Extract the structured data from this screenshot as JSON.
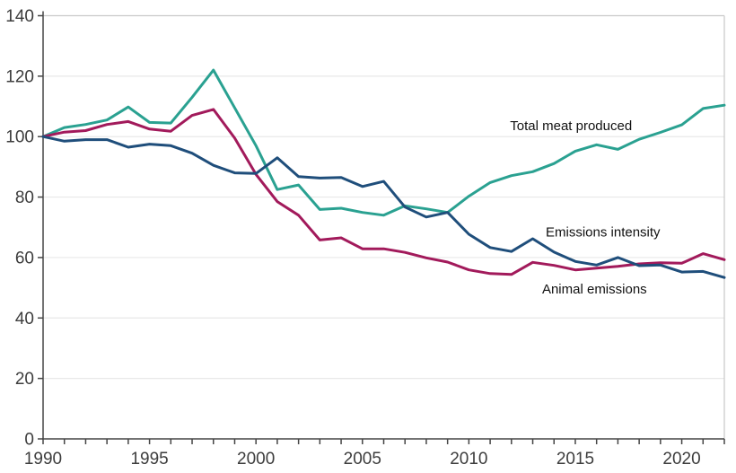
{
  "chart_data": {
    "type": "line",
    "title": "",
    "xlabel": "",
    "ylabel": "",
    "xlim": [
      1990,
      2022
    ],
    "ylim": [
      0,
      140
    ],
    "grid": "horizontal",
    "legend_position": "inline-labels",
    "x": [
      1990,
      1991,
      1992,
      1993,
      1994,
      1995,
      1996,
      1997,
      1998,
      1999,
      2000,
      2001,
      2002,
      2003,
      2004,
      2005,
      2006,
      2007,
      2008,
      2009,
      2010,
      2011,
      2012,
      2013,
      2014,
      2015,
      2016,
      2017,
      2018,
      2019,
      2020,
      2021,
      2022
    ],
    "y_ticks": [
      0,
      20,
      40,
      60,
      80,
      100,
      120,
      140
    ],
    "x_tick_labels": [
      1990,
      1995,
      2000,
      2005,
      2010,
      2015,
      2020
    ],
    "x_minor_tick_interval": 1,
    "series": [
      {
        "name": "Total meat produced",
        "color": "#2aa191",
        "values": [
          100,
          103,
          104,
          105.5,
          109.8,
          104.7,
          104.5,
          113,
          122,
          109.5,
          97,
          82.5,
          84,
          75.9,
          76.3,
          74.9,
          74,
          77.1,
          76.1,
          74.9,
          80.3,
          84.8,
          87.1,
          88.4,
          91.1,
          95.2,
          97.3,
          95.8,
          99.1,
          101.4,
          103.9,
          109.3,
          110.4
        ]
      },
      {
        "name": "Animal emissions",
        "color": "#a21a5b",
        "values": [
          100,
          101.5,
          102,
          104,
          105,
          102.5,
          101.8,
          107,
          109,
          99.5,
          87.5,
          78.5,
          74,
          65.8,
          66.5,
          62.9,
          62.9,
          61.7,
          59.9,
          58.5,
          55.9,
          54.7,
          54.4,
          58.4,
          57.4,
          55.9,
          56.5,
          57.1,
          57.9,
          58.3,
          58.1,
          61.3,
          59.3
        ]
      },
      {
        "name": "Emissions intensity",
        "color": "#1f4e7b",
        "values": [
          100,
          98.5,
          99,
          99,
          96.5,
          97.5,
          97,
          94.5,
          90.5,
          88,
          87.8,
          93,
          86.8,
          86.3,
          86.5,
          83.5,
          85.2,
          76.7,
          73.4,
          74.9,
          67.7,
          63.3,
          62,
          66.2,
          61.8,
          58.7,
          57.5,
          60,
          57.3,
          57.5,
          55.2,
          55.4,
          53.4
        ]
      }
    ],
    "annotations": [
      {
        "label": "Total meat produced",
        "x": 2014.8,
        "y": 103.7
      },
      {
        "label": "Emissions intensity",
        "x": 2016.3,
        "y": 68.5
      },
      {
        "label": "Animal emissions",
        "x": 2015.9,
        "y": 49.6
      }
    ]
  },
  "theme": {
    "background": "#ffffff",
    "axis_color": "#454545",
    "tick_label_color": "#3d3d3d",
    "grid_color": "#e8e8e8",
    "border_color": "#c9c9c9",
    "annotation_color": "#111111"
  }
}
